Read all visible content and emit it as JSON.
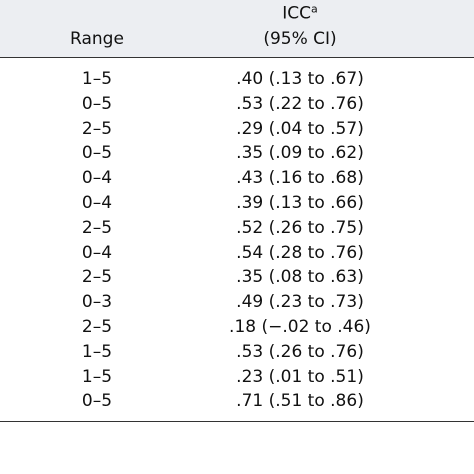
{
  "header": {
    "range": "Range",
    "icc": "ICC",
    "icc_sup": "a",
    "ci": "(95% CI)"
  },
  "table": {
    "rows": [
      [
        "1–5",
        ".40 (.13 to .67)"
      ],
      [
        "0–5",
        ".53 (.22 to .76)"
      ],
      [
        "2–5",
        ".29 (.04 to .57)"
      ],
      [
        "0–5",
        ".35 (.09 to .62)"
      ],
      [
        "0–4",
        ".43 (.16 to .68)"
      ],
      [
        "0–4",
        ".39 (.13 to .66)"
      ],
      [
        "2–5",
        ".52 (.26 to .75)"
      ],
      [
        "0–4",
        ".54 (.28 to .76)"
      ],
      [
        "2–5",
        ".35 (.08 to .63)"
      ],
      [
        "0–3",
        ".49 (.23 to .73)"
      ],
      [
        "2–5",
        ".18 (−.02 to .46)"
      ],
      [
        "1–5",
        ".53 (.26 to .76)"
      ],
      [
        "1–5",
        ".23 (.01 to .51)"
      ],
      [
        "0–5",
        ".71 (.51 to .86)"
      ]
    ]
  }
}
